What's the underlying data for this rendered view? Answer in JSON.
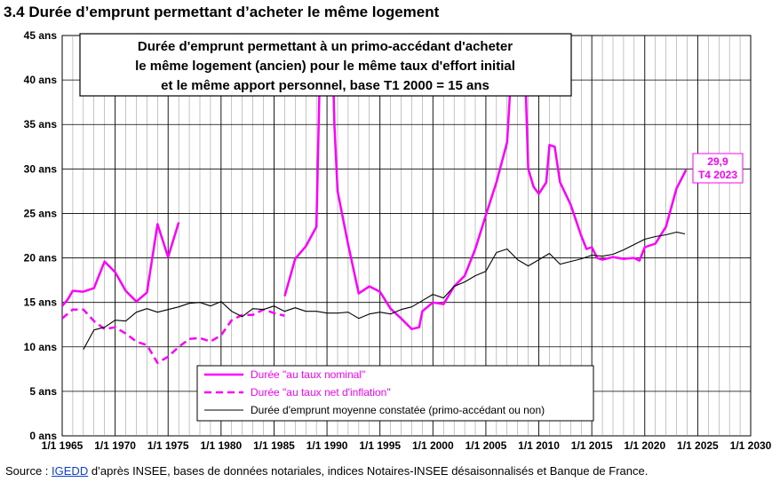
{
  "page_title": "3.4 Durée d’emprunt permettant d’acheter le même logement",
  "source": {
    "prefix": "Source : ",
    "link": "IGEDD",
    "suffix": " d’après INSEE, bases de données notariales, indices Notaires-INSEE désaisonnalisés et Banque de France."
  },
  "colors": {
    "nominal": "#ff00ff",
    "real": "#ff00ff",
    "average": "#000000",
    "grid": "#000000"
  },
  "chart_data": {
    "type": "line",
    "title": "Durée d'emprunt permettant à un primo-accédant d'acheter le même logement (ancien) pour le même taux d'effort initial et le même apport personnel, base T1 2000 = 15 ans",
    "title_lines": [
      "Durée d'emprunt permettant à un primo-accédant d'acheter",
      "le même logement (ancien) pour le même taux d'effort initial",
      "et le même apport personnel, base T1 2000 = 15 ans"
    ],
    "xlim": [
      1965,
      2030
    ],
    "ylim": [
      0,
      45
    ],
    "x_ticks": [
      1965,
      1970,
      1975,
      1980,
      1985,
      1990,
      1995,
      2000,
      2005,
      2010,
      2015,
      2020,
      2025,
      2030
    ],
    "x_tick_labels": [
      "1/1 1965",
      "1/1 1970",
      "1/1 1975",
      "1/1 1980",
      "1/1 1985",
      "1/1 1990",
      "1/1 1995",
      "1/1 2000",
      "1/1 2005",
      "1/1 2010",
      "1/1 2015",
      "1/1 2020",
      "1/1 2025",
      "1/1 2030"
    ],
    "y_ticks": [
      0,
      5,
      10,
      15,
      20,
      25,
      30,
      35,
      40,
      45
    ],
    "y_tick_labels": [
      "0 ans",
      "5 ans",
      "10 ans",
      "15 ans",
      "20 ans",
      "25 ans",
      "30 ans",
      "35 ans",
      "40 ans",
      "45 ans"
    ],
    "grid": true,
    "legend_position": "bottom-left",
    "annotation": {
      "value_label": "29,9",
      "date_label": "T4 2023",
      "x": 2023.9,
      "y": 29.9
    },
    "series": [
      {
        "name": "Durée \"au taux nominal\"",
        "style": "solid",
        "segments": [
          [
            [
              1965,
              14.6
            ],
            [
              1965.5,
              15.3
            ],
            [
              1966,
              16.3
            ],
            [
              1967,
              16.2
            ],
            [
              1968,
              16.6
            ],
            [
              1969,
              19.6
            ],
            [
              1970,
              18.4
            ],
            [
              1971,
              16.3
            ],
            [
              1972,
              15.1
            ],
            [
              1973,
              16.1
            ],
            [
              1974,
              23.8
            ],
            [
              1975,
              20.1
            ],
            [
              1976,
              24.0
            ]
          ],
          [
            [
              1986,
              15.7
            ],
            [
              1987,
              19.9
            ],
            [
              1988,
              21.3
            ],
            [
              1989,
              23.5
            ],
            [
              1989.4,
              45
            ]
          ],
          [
            [
              1990.5,
              45
            ],
            [
              1990.7,
              35
            ],
            [
              1991,
              27.5
            ],
            [
              1992,
              21.5
            ],
            [
              1993,
              16.0
            ],
            [
              1994,
              16.8
            ],
            [
              1995,
              16.2
            ],
            [
              1996,
              14.3
            ],
            [
              1997,
              13.2
            ],
            [
              1998,
              12.0
            ],
            [
              1998.7,
              12.2
            ],
            [
              1999,
              14.0
            ],
            [
              2000,
              15.0
            ],
            [
              2001,
              14.8
            ],
            [
              2002,
              16.8
            ],
            [
              2003,
              18.0
            ],
            [
              2004,
              21.0
            ],
            [
              2005,
              24.8
            ],
            [
              2006,
              28.5
            ],
            [
              2007,
              33.0
            ],
            [
              2007.6,
              45
            ]
          ],
          [
            [
              2008.6,
              45
            ],
            [
              2009,
              30.0
            ],
            [
              2009.5,
              28.0
            ],
            [
              2010,
              27.2
            ],
            [
              2010.7,
              28.5
            ],
            [
              2011,
              32.7
            ],
            [
              2011.5,
              32.5
            ],
            [
              2012,
              28.5
            ],
            [
              2013,
              26.0
            ],
            [
              2014,
              22.5
            ],
            [
              2014.5,
              21.0
            ],
            [
              2015,
              21.2
            ],
            [
              2015.5,
              20.0
            ],
            [
              2016,
              19.8
            ],
            [
              2017,
              20.1
            ],
            [
              2018,
              19.9
            ],
            [
              2019,
              20.0
            ],
            [
              2019.5,
              19.7
            ],
            [
              2020,
              21.2
            ],
            [
              2021,
              21.6
            ],
            [
              2022,
              23.5
            ],
            [
              2023,
              27.8
            ],
            [
              2023.9,
              29.9
            ]
          ]
        ]
      },
      {
        "name": "Durée \"au taux net d'inflation\"",
        "style": "dashed",
        "segments": [
          [
            [
              1965,
              13.2
            ],
            [
              1966,
              14.2
            ],
            [
              1967,
              14.2
            ],
            [
              1968,
              12.9
            ],
            [
              1969,
              12.0
            ],
            [
              1970,
              12.2
            ],
            [
              1971,
              11.5
            ],
            [
              1972,
              10.6
            ],
            [
              1973,
              10.2
            ],
            [
              1974,
              8.2
            ],
            [
              1975,
              8.9
            ],
            [
              1976,
              10.0
            ],
            [
              1977,
              10.9
            ],
            [
              1978,
              11.0
            ],
            [
              1979,
              10.6
            ],
            [
              1980,
              11.3
            ],
            [
              1981,
              13.0
            ],
            [
              1982,
              13.6
            ],
            [
              1983,
              13.6
            ],
            [
              1984,
              14.2
            ],
            [
              1985,
              13.8
            ],
            [
              1986,
              13.5
            ]
          ]
        ]
      },
      {
        "name": "Durée d'emprunt moyenne constatée (primo-accédant ou non)",
        "style": "thin",
        "segments": [
          [
            [
              1967,
              9.7
            ],
            [
              1968,
              11.9
            ],
            [
              1969,
              12.2
            ],
            [
              1970,
              13.0
            ],
            [
              1971,
              12.9
            ],
            [
              1972,
              13.9
            ],
            [
              1973,
              14.3
            ],
            [
              1974,
              13.9
            ],
            [
              1975,
              14.2
            ],
            [
              1976,
              14.5
            ],
            [
              1977,
              14.9
            ],
            [
              1978,
              15.0
            ],
            [
              1979,
              14.6
            ],
            [
              1980,
              15.1
            ],
            [
              1981,
              14.0
            ],
            [
              1982,
              13.4
            ],
            [
              1983,
              14.3
            ],
            [
              1984,
              14.2
            ],
            [
              1985,
              14.6
            ],
            [
              1986,
              14.0
            ],
            [
              1987,
              14.4
            ],
            [
              1988,
              14.0
            ],
            [
              1989,
              14.0
            ],
            [
              1990,
              13.8
            ],
            [
              1991,
              13.8
            ],
            [
              1992,
              13.9
            ],
            [
              1993,
              13.2
            ],
            [
              1994,
              13.7
            ],
            [
              1995,
              13.9
            ],
            [
              1996,
              13.7
            ],
            [
              1997,
              14.2
            ],
            [
              1998,
              14.5
            ],
            [
              1999,
              15.2
            ],
            [
              2000,
              15.9
            ],
            [
              2001,
              15.5
            ],
            [
              2002,
              16.8
            ],
            [
              2003,
              17.3
            ],
            [
              2004,
              18.0
            ],
            [
              2005,
              18.5
            ],
            [
              2006,
              20.6
            ],
            [
              2007,
              21.0
            ],
            [
              2008,
              19.8
            ],
            [
              2009,
              19.1
            ],
            [
              2010,
              19.8
            ],
            [
              2011,
              20.5
            ],
            [
              2012,
              19.3
            ],
            [
              2013,
              19.6
            ],
            [
              2014,
              19.9
            ],
            [
              2015,
              20.3
            ],
            [
              2016,
              20.2
            ],
            [
              2017,
              20.4
            ],
            [
              2018,
              20.9
            ],
            [
              2019,
              21.5
            ],
            [
              2020,
              22.1
            ],
            [
              2021,
              22.4
            ],
            [
              2022,
              22.6
            ],
            [
              2023,
              22.9
            ],
            [
              2023.8,
              22.7
            ]
          ]
        ]
      }
    ]
  }
}
